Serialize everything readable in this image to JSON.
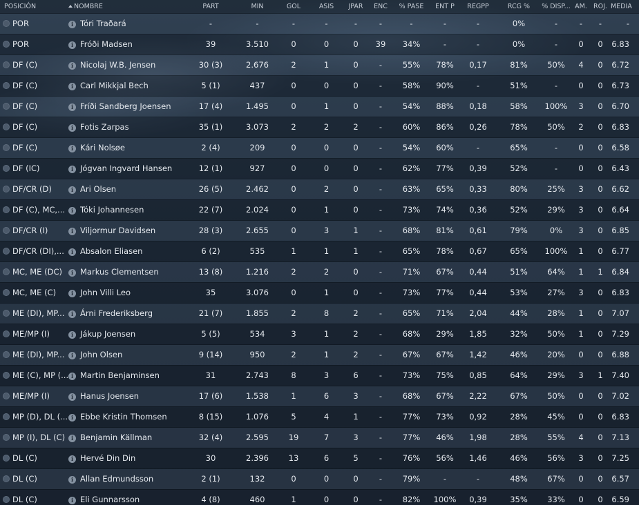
{
  "columns": {
    "pos": "POSICIÓN",
    "name": "NOMBRE",
    "part": "PART",
    "min": "MIN",
    "gol": "GOL",
    "asis": "ASIS",
    "jpar": "JPAR",
    "enc": "ENC",
    "pase": "% PASE",
    "entp": "ENT P",
    "regpp": "REGPP",
    "rcg": "RCG %",
    "disp": "% DISP...",
    "am": "AM.",
    "roj": "ROJ.",
    "media": "MEDIA"
  },
  "players": [
    {
      "pos": "POR",
      "name": "Tóri Traðará",
      "part": "-",
      "min": "-",
      "gol": "-",
      "asis": "-",
      "jpar": "-",
      "enc": "-",
      "pase": "-",
      "entp": "-",
      "regpp": "-",
      "rcg": "0%",
      "disp": "-",
      "am": "-",
      "roj": "-",
      "media": "-"
    },
    {
      "pos": "POR",
      "name": "Fróði Madsen",
      "part": "39",
      "min": "3.510",
      "gol": "0",
      "asis": "0",
      "jpar": "0",
      "enc": "39",
      "pase": "34%",
      "entp": "-",
      "regpp": "-",
      "rcg": "0%",
      "disp": "-",
      "am": "0",
      "roj": "0",
      "media": "6.83"
    },
    {
      "pos": "DF (C)",
      "name": "Nicolaj W.B. Jensen",
      "part": "30 (3)",
      "min": "2.676",
      "gol": "2",
      "asis": "1",
      "jpar": "0",
      "enc": "-",
      "pase": "55%",
      "entp": "78%",
      "regpp": "0,17",
      "rcg": "81%",
      "disp": "50%",
      "am": "4",
      "roj": "0",
      "media": "6.72"
    },
    {
      "pos": "DF (C)",
      "name": "Carl Mikkjal Bech",
      "part": "5 (1)",
      "min": "437",
      "gol": "0",
      "asis": "0",
      "jpar": "0",
      "enc": "-",
      "pase": "58%",
      "entp": "90%",
      "regpp": "-",
      "rcg": "51%",
      "disp": "-",
      "am": "0",
      "roj": "0",
      "media": "6.73"
    },
    {
      "pos": "DF (C)",
      "name": "Fríði Sandberg Joensen",
      "part": "17 (4)",
      "min": "1.495",
      "gol": "0",
      "asis": "1",
      "jpar": "0",
      "enc": "-",
      "pase": "54%",
      "entp": "88%",
      "regpp": "0,18",
      "rcg": "58%",
      "disp": "100%",
      "am": "3",
      "roj": "0",
      "media": "6.70"
    },
    {
      "pos": "DF (C)",
      "name": "Fotis Zarpas",
      "part": "35 (1)",
      "min": "3.073",
      "gol": "2",
      "asis": "2",
      "jpar": "2",
      "enc": "-",
      "pase": "60%",
      "entp": "86%",
      "regpp": "0,26",
      "rcg": "78%",
      "disp": "50%",
      "am": "2",
      "roj": "0",
      "media": "6.83"
    },
    {
      "pos": "DF (C)",
      "name": "Kári Nolsøe",
      "part": "2 (4)",
      "min": "209",
      "gol": "0",
      "asis": "0",
      "jpar": "0",
      "enc": "-",
      "pase": "54%",
      "entp": "60%",
      "regpp": "-",
      "rcg": "65%",
      "disp": "-",
      "am": "0",
      "roj": "0",
      "media": "6.58"
    },
    {
      "pos": "DF (IC)",
      "name": "Jógvan Ingvard Hansen",
      "part": "12 (1)",
      "min": "927",
      "gol": "0",
      "asis": "0",
      "jpar": "0",
      "enc": "-",
      "pase": "62%",
      "entp": "77%",
      "regpp": "0,39",
      "rcg": "52%",
      "disp": "-",
      "am": "0",
      "roj": "0",
      "media": "6.43"
    },
    {
      "pos": "DF/CR (D)",
      "name": "Ari Olsen",
      "part": "26 (5)",
      "min": "2.462",
      "gol": "0",
      "asis": "2",
      "jpar": "0",
      "enc": "-",
      "pase": "63%",
      "entp": "65%",
      "regpp": "0,33",
      "rcg": "80%",
      "disp": "25%",
      "am": "3",
      "roj": "0",
      "media": "6.62"
    },
    {
      "pos": "DF (C), MC,...",
      "name": "Tóki Johannesen",
      "part": "22 (7)",
      "min": "2.024",
      "gol": "0",
      "asis": "1",
      "jpar": "0",
      "enc": "-",
      "pase": "73%",
      "entp": "74%",
      "regpp": "0,36",
      "rcg": "52%",
      "disp": "29%",
      "am": "3",
      "roj": "0",
      "media": "6.64"
    },
    {
      "pos": "DF/CR (I)",
      "name": "Viljormur Davidsen",
      "part": "28 (3)",
      "min": "2.655",
      "gol": "0",
      "asis": "3",
      "jpar": "1",
      "enc": "-",
      "pase": "68%",
      "entp": "81%",
      "regpp": "0,61",
      "rcg": "79%",
      "disp": "0%",
      "am": "3",
      "roj": "0",
      "media": "6.85"
    },
    {
      "pos": "DF/CR (DI),...",
      "name": "Absalon Eliasen",
      "part": "6 (2)",
      "min": "535",
      "gol": "1",
      "asis": "1",
      "jpar": "1",
      "enc": "-",
      "pase": "65%",
      "entp": "78%",
      "regpp": "0,67",
      "rcg": "65%",
      "disp": "100%",
      "am": "1",
      "roj": "0",
      "media": "6.77"
    },
    {
      "pos": "MC, ME (DC)",
      "name": "Markus Clementsen",
      "part": "13 (8)",
      "min": "1.216",
      "gol": "2",
      "asis": "2",
      "jpar": "0",
      "enc": "-",
      "pase": "71%",
      "entp": "67%",
      "regpp": "0,44",
      "rcg": "51%",
      "disp": "64%",
      "am": "1",
      "roj": "1",
      "media": "6.84"
    },
    {
      "pos": "MC, ME (C)",
      "name": "John Villi Leo",
      "part": "35",
      "min": "3.076",
      "gol": "0",
      "asis": "1",
      "jpar": "0",
      "enc": "-",
      "pase": "73%",
      "entp": "77%",
      "regpp": "0,44",
      "rcg": "53%",
      "disp": "27%",
      "am": "3",
      "roj": "0",
      "media": "6.83"
    },
    {
      "pos": "ME (DI), MP...",
      "name": "Árni Frederiksberg",
      "part": "21 (7)",
      "min": "1.855",
      "gol": "2",
      "asis": "8",
      "jpar": "2",
      "enc": "-",
      "pase": "65%",
      "entp": "71%",
      "regpp": "2,04",
      "rcg": "44%",
      "disp": "28%",
      "am": "1",
      "roj": "0",
      "media": "7.07"
    },
    {
      "pos": "ME/MP (I)",
      "name": "Jákup Joensen",
      "part": "5 (5)",
      "min": "534",
      "gol": "3",
      "asis": "1",
      "jpar": "2",
      "enc": "-",
      "pase": "68%",
      "entp": "29%",
      "regpp": "1,85",
      "rcg": "32%",
      "disp": "50%",
      "am": "1",
      "roj": "0",
      "media": "7.29"
    },
    {
      "pos": "ME (DI), MP...",
      "name": "John Olsen",
      "part": "9 (14)",
      "min": "950",
      "gol": "2",
      "asis": "1",
      "jpar": "2",
      "enc": "-",
      "pase": "67%",
      "entp": "67%",
      "regpp": "1,42",
      "rcg": "46%",
      "disp": "20%",
      "am": "0",
      "roj": "0",
      "media": "6.88"
    },
    {
      "pos": "ME (C), MP (...",
      "name": "Martin Benjaminsen",
      "part": "31",
      "min": "2.743",
      "gol": "8",
      "asis": "3",
      "jpar": "6",
      "enc": "-",
      "pase": "73%",
      "entp": "75%",
      "regpp": "0,85",
      "rcg": "64%",
      "disp": "29%",
      "am": "3",
      "roj": "1",
      "media": "7.40"
    },
    {
      "pos": "ME/MP (I)",
      "name": "Hanus Joensen",
      "part": "17 (6)",
      "min": "1.538",
      "gol": "1",
      "asis": "6",
      "jpar": "3",
      "enc": "-",
      "pase": "68%",
      "entp": "67%",
      "regpp": "2,22",
      "rcg": "67%",
      "disp": "50%",
      "am": "0",
      "roj": "0",
      "media": "7.02"
    },
    {
      "pos": "MP (D), DL (...",
      "name": "Ebbe Kristin Thomsen",
      "part": "8 (15)",
      "min": "1.076",
      "gol": "5",
      "asis": "4",
      "jpar": "1",
      "enc": "-",
      "pase": "77%",
      "entp": "73%",
      "regpp": "0,92",
      "rcg": "28%",
      "disp": "45%",
      "am": "0",
      "roj": "0",
      "media": "6.83"
    },
    {
      "pos": "MP (I), DL (C)",
      "name": "Benjamin Källman",
      "part": "32 (4)",
      "min": "2.595",
      "gol": "19",
      "asis": "7",
      "jpar": "3",
      "enc": "-",
      "pase": "77%",
      "entp": "46%",
      "regpp": "1,98",
      "rcg": "28%",
      "disp": "55%",
      "am": "4",
      "roj": "0",
      "media": "7.13"
    },
    {
      "pos": "DL (C)",
      "name": "Hervé Din Din",
      "part": "30",
      "min": "2.396",
      "gol": "13",
      "asis": "6",
      "jpar": "5",
      "enc": "-",
      "pase": "76%",
      "entp": "56%",
      "regpp": "1,46",
      "rcg": "46%",
      "disp": "56%",
      "am": "3",
      "roj": "0",
      "media": "7.25"
    },
    {
      "pos": "DL (C)",
      "name": "Allan Edmundsson",
      "part": "2 (1)",
      "min": "132",
      "gol": "0",
      "asis": "0",
      "jpar": "0",
      "enc": "-",
      "pase": "79%",
      "entp": "-",
      "regpp": "-",
      "rcg": "48%",
      "disp": "67%",
      "am": "0",
      "roj": "0",
      "media": "6.57"
    },
    {
      "pos": "DL (C)",
      "name": "Eli Gunnarsson",
      "part": "4 (8)",
      "min": "460",
      "gol": "1",
      "asis": "0",
      "jpar": "0",
      "enc": "-",
      "pase": "82%",
      "entp": "100%",
      "regpp": "0,39",
      "rcg": "35%",
      "disp": "33%",
      "am": "0",
      "roj": "0",
      "media": "6.59"
    }
  ]
}
